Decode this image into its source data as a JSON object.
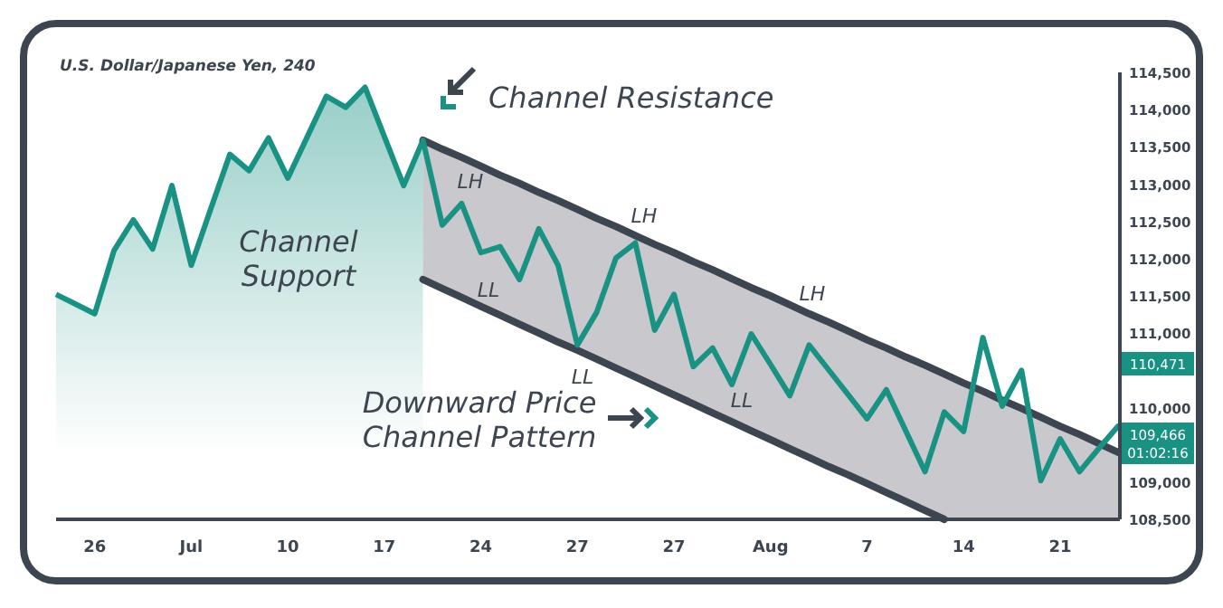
{
  "chart_data": {
    "type": "line",
    "title": "U.S. Dollar/Japanese Yen, 240",
    "categories": [
      null,
      null,
      "26",
      null,
      null,
      null,
      null,
      "Jul",
      null,
      null,
      null,
      null,
      "10",
      null,
      null,
      null,
      null,
      "17",
      null,
      null,
      null,
      null,
      "24",
      null,
      null,
      null,
      null,
      "27",
      null,
      null,
      null,
      null,
      "27",
      null,
      null,
      null,
      null,
      "Aug",
      null,
      null,
      null,
      null,
      "7",
      null,
      null,
      null,
      null,
      "14",
      null,
      null,
      null,
      null,
      "21",
      null,
      null,
      null
    ],
    "ylim": [
      108500,
      114500
    ],
    "yticks": [
      {
        "value": 108500,
        "label": "108,500"
      },
      {
        "value": 109000,
        "label": "109,000"
      },
      {
        "value": 110000,
        "label": "110,000"
      },
      {
        "value": 111000,
        "label": "111,000"
      },
      {
        "value": 111500,
        "label": "111,500"
      },
      {
        "value": 112000,
        "label": "112,000"
      },
      {
        "value": 112500,
        "label": "112,500"
      },
      {
        "value": 113000,
        "label": "113,000"
      },
      {
        "value": 113500,
        "label": "113,500"
      },
      {
        "value": 114000,
        "label": "114,000"
      },
      {
        "value": 114500,
        "label": "114,500"
      }
    ],
    "grid": false,
    "marker": "none",
    "line_style": "solid",
    "series": [
      {
        "color": "#3d4650",
        "values": [
          null,
          null,
          null,
          null,
          null,
          null,
          null,
          null,
          null,
          null,
          null,
          null,
          null,
          null,
          null,
          null,
          null,
          null,
          null,
          113590,
          113470,
          113360,
          113240,
          113120,
          113010,
          112890,
          112780,
          112660,
          112540,
          112430,
          112310,
          112190,
          112080,
          111960,
          111850,
          111730,
          111610,
          111500,
          111380,
          111260,
          111150,
          111030,
          110910,
          110800,
          110680,
          110570,
          110450,
          110330,
          110220,
          110100,
          109990,
          109870,
          109750,
          109640,
          109520,
          109400
        ],
        "upper": [
          null,
          null,
          null,
          null,
          null,
          null,
          null,
          null,
          null,
          null,
          null,
          null,
          null,
          null,
          null,
          null,
          null,
          null,
          null,
          113590,
          113470,
          113360,
          113240,
          113120,
          113010,
          112890,
          112780,
          112660,
          112540,
          112430,
          112310,
          112190,
          112080,
          111960,
          111850,
          111730,
          111610,
          111500,
          111380,
          111260,
          111150,
          111030,
          110910,
          110800,
          110680,
          110570,
          110450,
          110330,
          110220,
          110100,
          109990,
          109870,
          109750,
          109640,
          109520,
          109400
        ],
        "lower": [
          null,
          null,
          null,
          null,
          null,
          null,
          null,
          null,
          null,
          null,
          null,
          null,
          null,
          null,
          null,
          null,
          null,
          null,
          null,
          111720,
          111600,
          111480,
          111360,
          111240,
          111120,
          111000,
          110880,
          110770,
          110650,
          110530,
          110410,
          110290,
          110170,
          110050,
          109930,
          109810,
          109690,
          109570,
          109450,
          109330,
          109210,
          109100,
          108980,
          108860,
          108740,
          108620,
          108500,
          108500,
          108500,
          108500,
          108500,
          108500,
          108500,
          108500,
          108500,
          108500
        ]
      },
      {
        "color": "#3d4650",
        "values": [
          null,
          null,
          null,
          null,
          null,
          null,
          null,
          null,
          null,
          null,
          null,
          null,
          null,
          null,
          null,
          null,
          null,
          null,
          null,
          111720,
          111600,
          111480,
          111360,
          111240,
          111120,
          111000,
          110880,
          110770,
          110650,
          110530,
          110410,
          110290,
          110170,
          110050,
          109930,
          109810,
          109690,
          109570,
          109450,
          109330,
          109210,
          109100,
          108980,
          108860,
          108740,
          108620,
          108500,
          null,
          null,
          null,
          null,
          null,
          null,
          null,
          null,
          null
        ]
      },
      {
        "type": "area",
        "color": "#1a9283",
        "values": [
          111520,
          111390,
          111260,
          112110,
          112520,
          112130,
          112980,
          111910,
          112660,
          113400,
          113180,
          113620,
          113080,
          113630,
          114180,
          114030,
          114300,
          113640,
          112980,
          113590,
          null,
          null,
          null,
          null,
          null,
          null,
          null,
          null,
          null,
          null,
          null,
          null,
          null,
          null,
          null,
          null,
          null,
          null,
          null,
          null,
          null,
          null,
          null,
          null,
          null,
          null,
          null,
          null,
          null,
          null,
          null,
          null,
          null,
          null,
          null,
          null
        ]
      },
      {
        "color": "#1a9283",
        "values": [
          null,
          null,
          null,
          null,
          null,
          null,
          null,
          null,
          null,
          null,
          null,
          null,
          null,
          null,
          null,
          null,
          null,
          null,
          null,
          113590,
          112450,
          112740,
          112080,
          112160,
          111720,
          112400,
          111910,
          110840,
          111280,
          112010,
          112210,
          111040,
          111520,
          110550,
          110800,
          110310,
          110990,
          110580,
          110160,
          110840,
          110510,
          110180,
          109850,
          110240,
          109690,
          109140,
          109940,
          109680,
          110940,
          110020,
          110500,
          109020,
          109580,
          109140,
          109450,
          109750
        ]
      }
    ],
    "annotations": [
      "Channel Resistance",
      "LH",
      "LH",
      "LH",
      "LL",
      "LL",
      "LL",
      "Channel\nSupport",
      "Downward Price\nChannel Pattern",
      "110,471",
      "109,466\n01:02:16"
    ]
  }
}
